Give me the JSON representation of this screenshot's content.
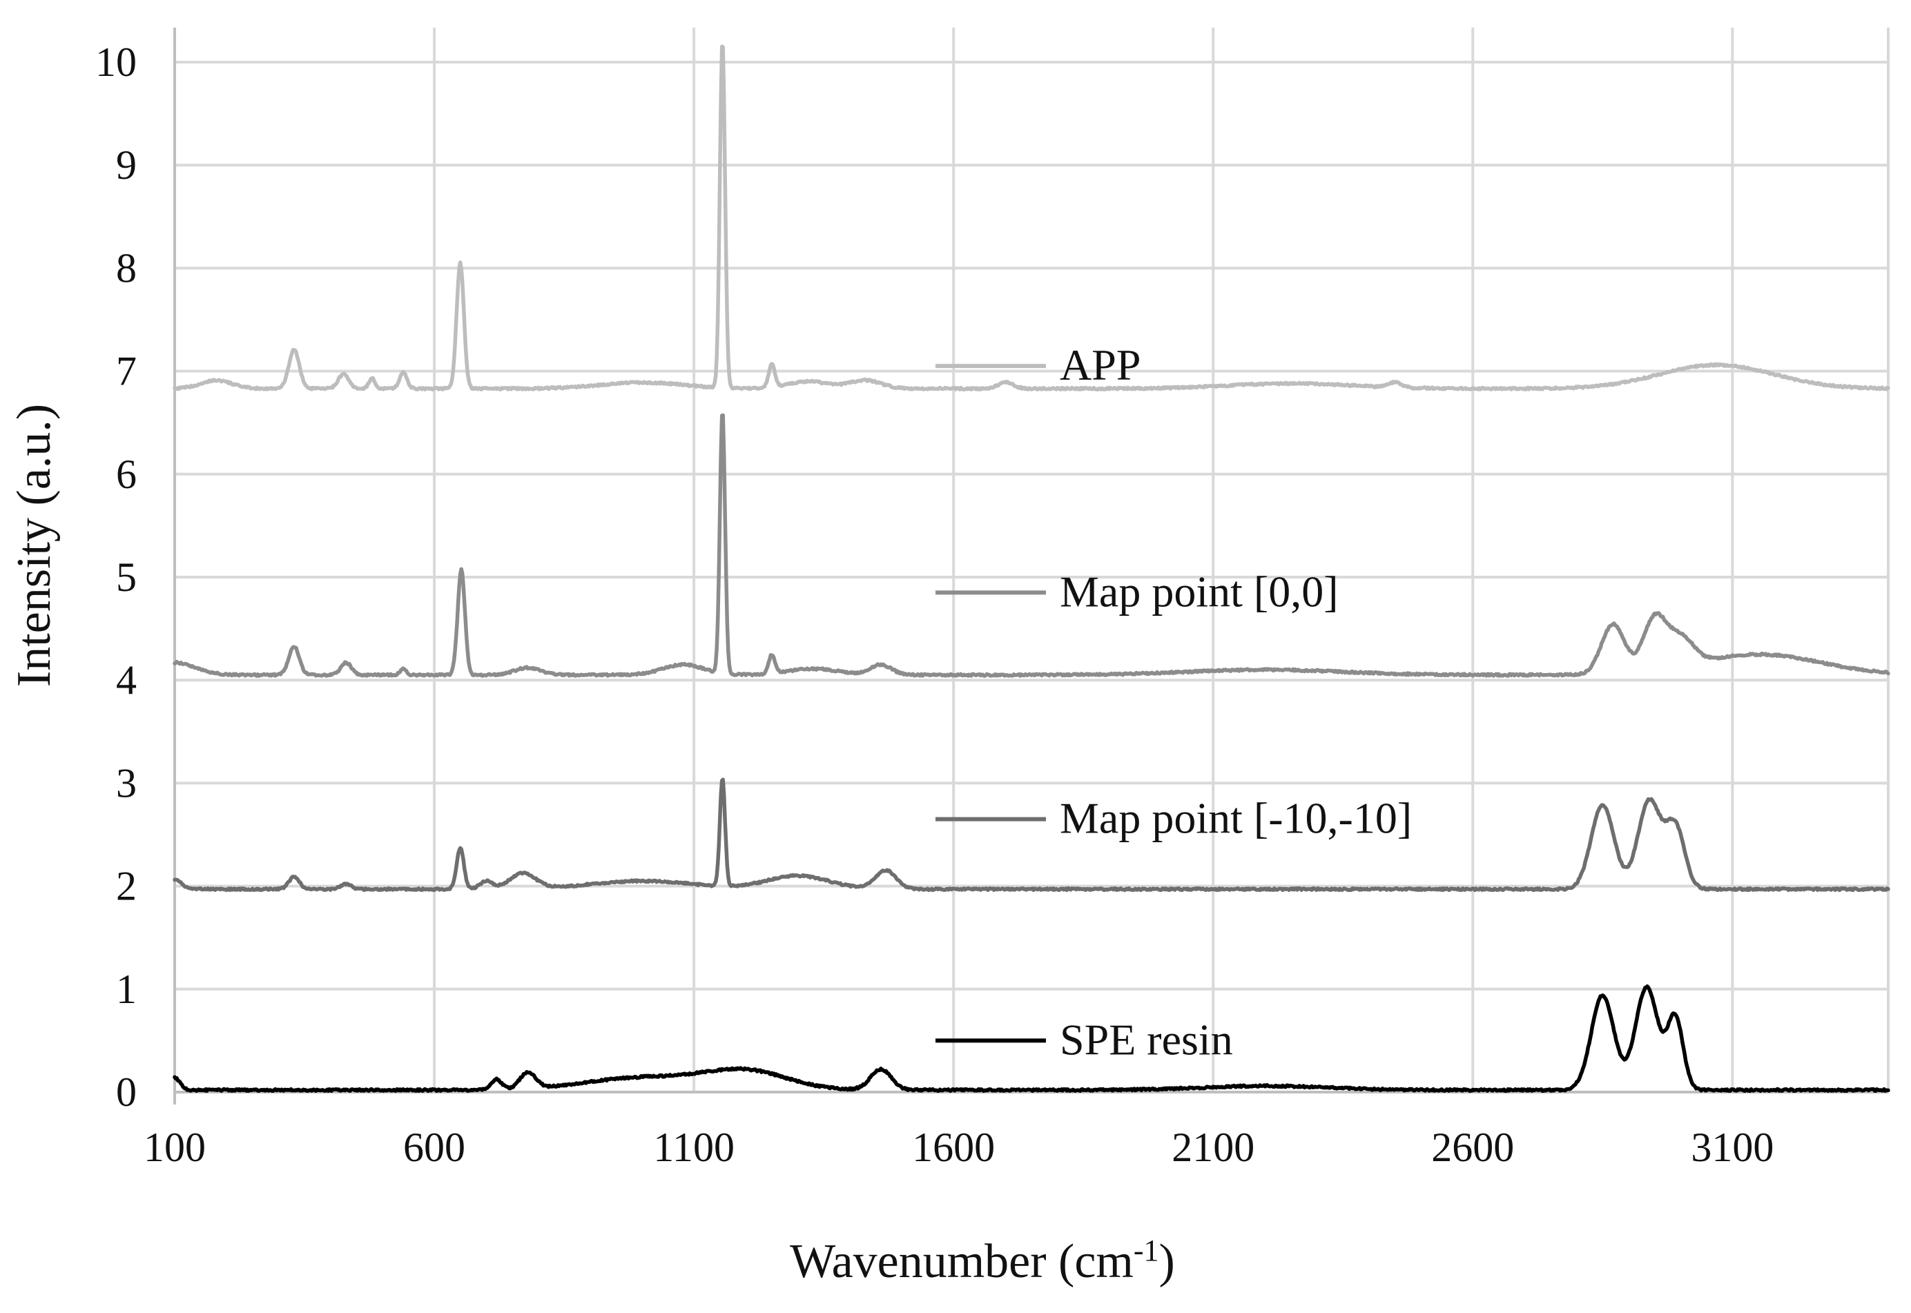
{
  "chart_data": {
    "type": "line",
    "title": "",
    "xlabel": "Wavenumber (cm",
    "xlabel_superscript": "-1",
    "xlabel_suffix": ")",
    "ylabel": "Intensity (a.u.)",
    "xlim": [
      100,
      3400
    ],
    "ylim": [
      0,
      10
    ],
    "grid": true,
    "x_ticks": [
      100,
      600,
      1100,
      1600,
      2100,
      2600,
      3100
    ],
    "y_ticks": [
      0,
      1,
      2,
      3,
      4,
      5,
      6,
      7,
      8,
      9,
      10
    ],
    "legend_placement": "inline-center",
    "series": [
      {
        "name": "APP",
        "color": "#bdbdbd",
        "baseline": 6.83,
        "slope": 0,
        "features": [
          {
            "center": 180,
            "height": 0.08,
            "width": 30
          },
          {
            "center": 330,
            "height": 0.38,
            "width": 10
          },
          {
            "center": 425,
            "height": 0.14,
            "width": 10
          },
          {
            "center": 480,
            "height": 0.1,
            "width": 6
          },
          {
            "center": 540,
            "height": 0.16,
            "width": 7
          },
          {
            "center": 650,
            "height": 1.22,
            "width": 7
          },
          {
            "center": 1000,
            "height": 0.06,
            "width": 80
          },
          {
            "center": 1155,
            "height": 3.37,
            "width": 5
          },
          {
            "center": 1250,
            "height": 0.22,
            "width": 6
          },
          {
            "center": 1320,
            "height": 0.07,
            "width": 40
          },
          {
            "center": 1430,
            "height": 0.08,
            "width": 30
          },
          {
            "center": 1700,
            "height": 0.06,
            "width": 15
          },
          {
            "center": 2250,
            "height": 0.05,
            "width": 120
          },
          {
            "center": 2450,
            "height": 0.05,
            "width": 12
          },
          {
            "center": 3070,
            "height": 0.23,
            "width": 110
          }
        ]
      },
      {
        "name": "Map point [0,0]",
        "color": "#8c8c8c",
        "baseline": 4.05,
        "slope": 0,
        "features": [
          {
            "center": 100,
            "height": 0.12,
            "width": 40
          },
          {
            "center": 330,
            "height": 0.28,
            "width": 10
          },
          {
            "center": 430,
            "height": 0.12,
            "width": 10
          },
          {
            "center": 540,
            "height": 0.06,
            "width": 6
          },
          {
            "center": 652,
            "height": 1.02,
            "width": 7
          },
          {
            "center": 780,
            "height": 0.07,
            "width": 25
          },
          {
            "center": 1080,
            "height": 0.1,
            "width": 40
          },
          {
            "center": 1155,
            "height": 2.55,
            "width": 5
          },
          {
            "center": 1250,
            "height": 0.18,
            "width": 6
          },
          {
            "center": 1330,
            "height": 0.06,
            "width": 50
          },
          {
            "center": 1460,
            "height": 0.1,
            "width": 20
          },
          {
            "center": 2200,
            "height": 0.05,
            "width": 150
          },
          {
            "center": 2870,
            "height": 0.48,
            "width": 22
          },
          {
            "center": 2950,
            "height": 0.5,
            "width": 22
          },
          {
            "center": 3000,
            "height": 0.28,
            "width": 25
          },
          {
            "center": 3150,
            "height": 0.2,
            "width": 120
          }
        ]
      },
      {
        "name": "Map point [-10,-10]",
        "color": "#6e6e6e",
        "baseline": 1.97,
        "slope": 0,
        "features": [
          {
            "center": 100,
            "height": 0.1,
            "width": 12
          },
          {
            "center": 330,
            "height": 0.12,
            "width": 10
          },
          {
            "center": 430,
            "height": 0.05,
            "width": 10
          },
          {
            "center": 650,
            "height": 0.4,
            "width": 7
          },
          {
            "center": 700,
            "height": 0.08,
            "width": 12
          },
          {
            "center": 770,
            "height": 0.15,
            "width": 25
          },
          {
            "center": 1000,
            "height": 0.08,
            "width": 100
          },
          {
            "center": 1155,
            "height": 1.05,
            "width": 5
          },
          {
            "center": 1300,
            "height": 0.13,
            "width": 60
          },
          {
            "center": 1470,
            "height": 0.18,
            "width": 20
          },
          {
            "center": 2850,
            "height": 0.82,
            "width": 22
          },
          {
            "center": 2940,
            "height": 0.86,
            "width": 22
          },
          {
            "center": 2990,
            "height": 0.6,
            "width": 18
          }
        ]
      },
      {
        "name": "SPE resin",
        "color": "#000000",
        "baseline": 0.02,
        "slope": 0,
        "features": [
          {
            "center": 100,
            "height": 0.12,
            "width": 10
          },
          {
            "center": 720,
            "height": 0.1,
            "width": 10
          },
          {
            "center": 780,
            "height": 0.16,
            "width": 15
          },
          {
            "center": 1000,
            "height": 0.12,
            "width": 110
          },
          {
            "center": 1200,
            "height": 0.18,
            "width": 80
          },
          {
            "center": 1460,
            "height": 0.2,
            "width": 20
          },
          {
            "center": 2200,
            "height": 0.04,
            "width": 120
          },
          {
            "center": 2850,
            "height": 0.92,
            "width": 22
          },
          {
            "center": 2935,
            "height": 1.0,
            "width": 22
          },
          {
            "center": 2990,
            "height": 0.7,
            "width": 15
          }
        ]
      }
    ]
  }
}
